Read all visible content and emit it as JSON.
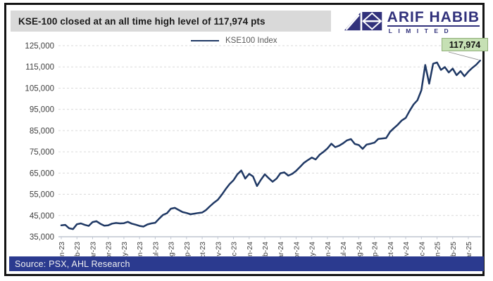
{
  "header": {
    "title": "KSE-100 closed at an all time high level of 117,974 pts",
    "logo": {
      "name": "ARIF HABIB",
      "sub": "LIMITED"
    }
  },
  "legend": {
    "label": "KSE100 Index"
  },
  "callout": {
    "value": "117,974"
  },
  "footer": {
    "source": "Source: PSX, AHL Research"
  },
  "colors": {
    "line": "#1F3864",
    "header_bg": "#D9D9D9",
    "footer_bg": "#2B3A8F",
    "logo": "#31317B",
    "callout_bg": "#C6E0B4",
    "callout_border": "#8FAE77",
    "grid": "#D9D9D9",
    "axis": "#BFC5D1",
    "tick_text": "#3F3F3F"
  },
  "chart_data": {
    "type": "line",
    "title": "KSE-100 closed at an all time high level of 117,974 pts",
    "xlabel": "",
    "ylabel": "",
    "ylim": [
      35000,
      125000
    ],
    "ytick_step": 10000,
    "grid": "horizontal-dashed",
    "legend_position": "top-center",
    "last_value": 117974,
    "points_per_month": 4,
    "x_tick_labels": [
      "Jan-23",
      "Feb-23",
      "Mar-23",
      "Apr-23",
      "May-23",
      "Jun-23",
      "Jul-23",
      "Aug-23",
      "Sep-23",
      "Oct-23",
      "Nov-23",
      "Dec-23",
      "Jan-24",
      "Feb-24",
      "Mar-24",
      "Apr-24",
      "May-24",
      "Jun-24",
      "Jul-24",
      "Aug-24",
      "Sep-24",
      "Oct-24",
      "Nov-24",
      "Dec-24",
      "Jan-25",
      "Feb-25",
      "Mar-25"
    ],
    "series": [
      {
        "name": "KSE100 Index",
        "values": [
          40400,
          40600,
          39000,
          38600,
          40900,
          41300,
          40600,
          40100,
          41900,
          42300,
          41100,
          40200,
          40400,
          41200,
          41500,
          41300,
          41400,
          42000,
          41200,
          40700,
          40100,
          39800,
          40800,
          41300,
          41600,
          43500,
          45300,
          46100,
          48200,
          48600,
          47600,
          46600,
          46200,
          45600,
          45900,
          46200,
          46400,
          47600,
          49400,
          51000,
          52400,
          54800,
          57400,
          59800,
          61600,
          64400,
          66200,
          62400,
          64600,
          63400,
          58900,
          61800,
          64400,
          62600,
          60900,
          62400,
          64900,
          65300,
          63800,
          64600,
          66000,
          67900,
          69800,
          71100,
          72300,
          71400,
          73600,
          75000,
          76600,
          78800,
          77200,
          77900,
          79000,
          80400,
          81000,
          78700,
          78200,
          76400,
          78400,
          78800,
          79300,
          81100,
          81300,
          81500,
          84400,
          86200,
          87800,
          89800,
          91000,
          94300,
          97300,
          99300,
          104000,
          115900,
          107100,
          116500,
          117100,
          113600,
          114900,
          112400,
          114200,
          111100,
          113000,
          110600,
          112800,
          114500,
          116000,
          117974
        ]
      }
    ]
  }
}
